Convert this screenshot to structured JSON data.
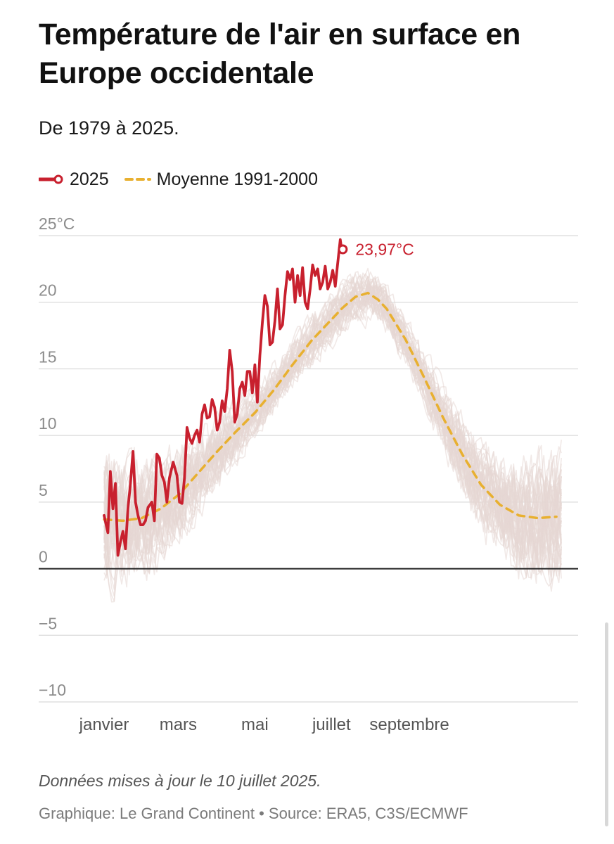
{
  "page": {
    "title": "Température de l'air en surface en Europe occidentale",
    "subtitle": "De 1979 à 2025.",
    "note": "Données mises à jour le 10 juillet 2025.",
    "credit": "Graphique: Le Grand Continent • Source: ERA5, C3S/ECMWF"
  },
  "colors": {
    "series_2025": "#c8202e",
    "mean": "#e8b030",
    "historical": "#e6d7d3",
    "grid": "#e0e0e0",
    "zero_line": "#222222"
  },
  "chart_data": {
    "type": "line",
    "ylim": [
      -10,
      25
    ],
    "xlim": [
      0,
      365
    ],
    "y_ticks": [
      {
        "value": 25,
        "label": "25°C"
      },
      {
        "value": 20,
        "label": "20"
      },
      {
        "value": 15,
        "label": "15"
      },
      {
        "value": 10,
        "label": "10"
      },
      {
        "value": 5,
        "label": "5"
      },
      {
        "value": 0,
        "label": "0"
      },
      {
        "value": -5,
        "label": "−5"
      },
      {
        "value": -10,
        "label": "−10"
      }
    ],
    "x_ticks": [
      {
        "day": 0,
        "label": "janvier"
      },
      {
        "day": 59,
        "label": "mars"
      },
      {
        "day": 120,
        "label": "mai"
      },
      {
        "day": 181,
        "label": "juillet"
      },
      {
        "day": 243,
        "label": "septembre"
      }
    ],
    "legend": [
      {
        "name": "2025",
        "style": "solid-circle"
      },
      {
        "name": "Moyenne 1991-2000",
        "style": "dashed"
      }
    ],
    "series": [
      {
        "name": "2025",
        "end_label": "23,97°C",
        "x": [
          0,
          3,
          5,
          7,
          9,
          11,
          13,
          15,
          17,
          19,
          21,
          23,
          25,
          27,
          29,
          31,
          33,
          35,
          38,
          40,
          42,
          44,
          46,
          48,
          50,
          52,
          55,
          58,
          60,
          62,
          64,
          66,
          68,
          70,
          72,
          74,
          76,
          78,
          80,
          82,
          84,
          86,
          88,
          90,
          92,
          94,
          96,
          98,
          100,
          102,
          104,
          106,
          108,
          110,
          112,
          114,
          116,
          118,
          120,
          122,
          124,
          126,
          128,
          130,
          132,
          134,
          136,
          138,
          140,
          142,
          144,
          146,
          148,
          150,
          152,
          154,
          156,
          158,
          160,
          162,
          164,
          166,
          168,
          170,
          172,
          174,
          176,
          178,
          180,
          182,
          184,
          186,
          188,
          189,
          190
        ],
        "values": [
          4.0,
          2.7,
          7.3,
          4.5,
          6.4,
          1.0,
          2.0,
          2.8,
          1.5,
          4.5,
          6.4,
          8.8,
          5.0,
          4.0,
          3.3,
          3.3,
          3.6,
          4.6,
          5.0,
          3.6,
          8.6,
          8.3,
          7.0,
          6.5,
          5.0,
          6.8,
          8.0,
          7.0,
          5.0,
          4.9,
          6.8,
          10.6,
          9.8,
          9.4,
          10.0,
          10.4,
          9.5,
          11.6,
          12.3,
          11.3,
          11.4,
          12.7,
          12.1,
          10.4,
          11.0,
          12.6,
          11.8,
          13.5,
          16.4,
          14.8,
          11.0,
          11.6,
          13.5,
          14.0,
          13.0,
          14.8,
          14.8,
          13.2,
          15.3,
          12.5,
          16.0,
          18.5,
          20.5,
          19.7,
          16.8,
          17.0,
          18.6,
          21.0,
          18.0,
          18.3,
          20.5,
          22.3,
          21.7,
          22.5,
          20.0,
          22.0,
          20.5,
          22.6,
          20.0,
          19.5,
          21.0,
          22.8,
          22.0,
          22.5,
          21.0,
          21.5,
          22.7,
          21.0,
          21.5,
          22.4,
          21.2,
          23.0,
          24.7,
          24.0,
          23.97
        ]
      },
      {
        "name": "Moyenne 1991-2000",
        "x": [
          0,
          15,
          30,
          45,
          60,
          75,
          90,
          105,
          120,
          135,
          150,
          165,
          180,
          190,
          200,
          210,
          218,
          225,
          240,
          255,
          270,
          285,
          300,
          315,
          330,
          345,
          360
        ],
        "values": [
          3.7,
          3.6,
          3.8,
          4.5,
          5.6,
          7.2,
          8.8,
          10.3,
          11.7,
          13.4,
          15.3,
          17.1,
          18.6,
          19.6,
          20.4,
          20.7,
          20.2,
          19.5,
          17.2,
          14.3,
          11.3,
          8.6,
          6.3,
          4.8,
          4.0,
          3.8,
          3.9
        ]
      }
    ]
  }
}
